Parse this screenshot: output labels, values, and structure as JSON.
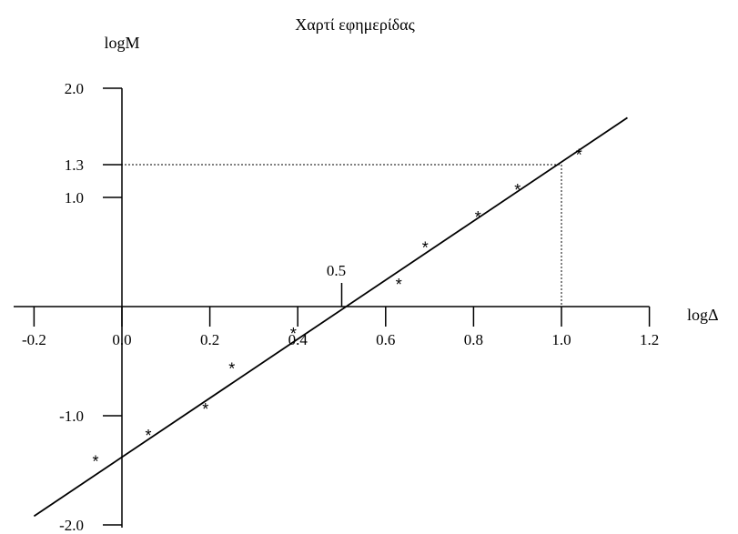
{
  "chart_data": {
    "type": "scatter",
    "title": "Χαρτί εφημερίδας",
    "xlabel": "logΔ",
    "ylabel": "logM",
    "xlim": [
      -0.2,
      1.2
    ],
    "ylim": [
      -2.0,
      2.0
    ],
    "x_ticks": [
      "-0.2",
      "0.0",
      "0.2",
      "0.4",
      "0.6",
      "0.8",
      "1.0",
      "1.2"
    ],
    "y_ticks": [
      "2.0",
      "1.3",
      "1.0",
      "-1.0",
      "-2.0"
    ],
    "y_tick_values": [
      2.0,
      1.3,
      1.0,
      -1.0,
      -2.0
    ],
    "points": [
      {
        "x": -0.06,
        "y": -1.38
      },
      {
        "x": 0.06,
        "y": -1.14
      },
      {
        "x": 0.19,
        "y": -0.9
      },
      {
        "x": 0.25,
        "y": -0.53
      },
      {
        "x": 0.39,
        "y": -0.21
      },
      {
        "x": 0.63,
        "y": 0.24
      },
      {
        "x": 0.69,
        "y": 0.58
      },
      {
        "x": 0.81,
        "y": 0.86
      },
      {
        "x": 0.9,
        "y": 1.11
      },
      {
        "x": 1.04,
        "y": 1.43
      }
    ],
    "point_marker": "*",
    "fit_line": {
      "x_start": -0.2,
      "y_start": -1.92,
      "x_end": 1.15,
      "y_end": 1.73
    },
    "annotations": [
      {
        "label": "0.5",
        "x": 0.5,
        "y": 0
      },
      {
        "label": "",
        "x": 1.0,
        "y": 1.3
      }
    ],
    "grid": false
  }
}
